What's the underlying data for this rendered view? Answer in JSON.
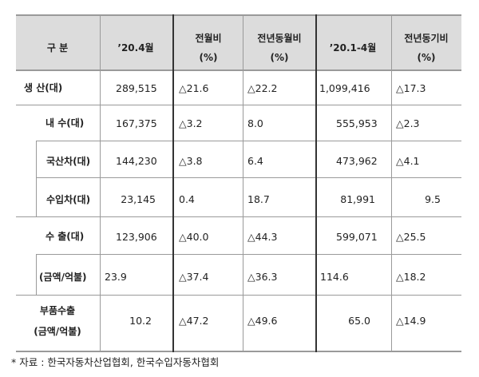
{
  "headers": {
    "category": "구 분",
    "month": "’20.4월",
    "mom": [
      "전월비",
      "(%)"
    ],
    "yoy_month": [
      "전년동월비",
      "(%)"
    ],
    "ytd": "’20.1-4월",
    "yoy_period": [
      "전년동기비",
      "(%)"
    ]
  },
  "rows": {
    "production": {
      "label": "생 산(대)",
      "month": "289,515",
      "mom": "△21.6",
      "yoy_month": "△22.2",
      "ytd": "1,099,416",
      "yoy_period": "△17.3"
    },
    "domestic": {
      "label": "내 수(대)",
      "month": "167,375",
      "mom": "△3.2",
      "yoy_month": "8.0",
      "ytd": "555,953",
      "yoy_period": "△2.3"
    },
    "domestic_made": {
      "label": "국산차(대)",
      "month": "144,230",
      "mom": "△3.8",
      "yoy_month": "6.4",
      "ytd": "473,962",
      "yoy_period": "△4.1"
    },
    "imported": {
      "label": "수입차(대)",
      "month": "23,145",
      "mom": "0.4",
      "yoy_month": "18.7",
      "ytd": "81,991",
      "yoy_period": "9.5"
    },
    "export": {
      "label": "수 출(대)",
      "month": "123,906",
      "mom": "△40.0",
      "yoy_month": "△44.3",
      "ytd": "599,071",
      "yoy_period": "△25.5"
    },
    "export_amount": {
      "label": "(금액/억불)",
      "month": "23.9",
      "mom": "△37.4",
      "yoy_month": "△36.3",
      "ytd": "114.6",
      "yoy_period": "△18.2"
    },
    "parts_export": {
      "label_line1": "부품수출",
      "label_line2": "(금액/억불)",
      "month": "10.2",
      "mom": "△47.2",
      "yoy_month": "△49.6",
      "ytd": "65.0",
      "yoy_period": "△14.9"
    }
  },
  "source": "* 자료 : 한국자동차산업협회, 한국수입자동차협회"
}
